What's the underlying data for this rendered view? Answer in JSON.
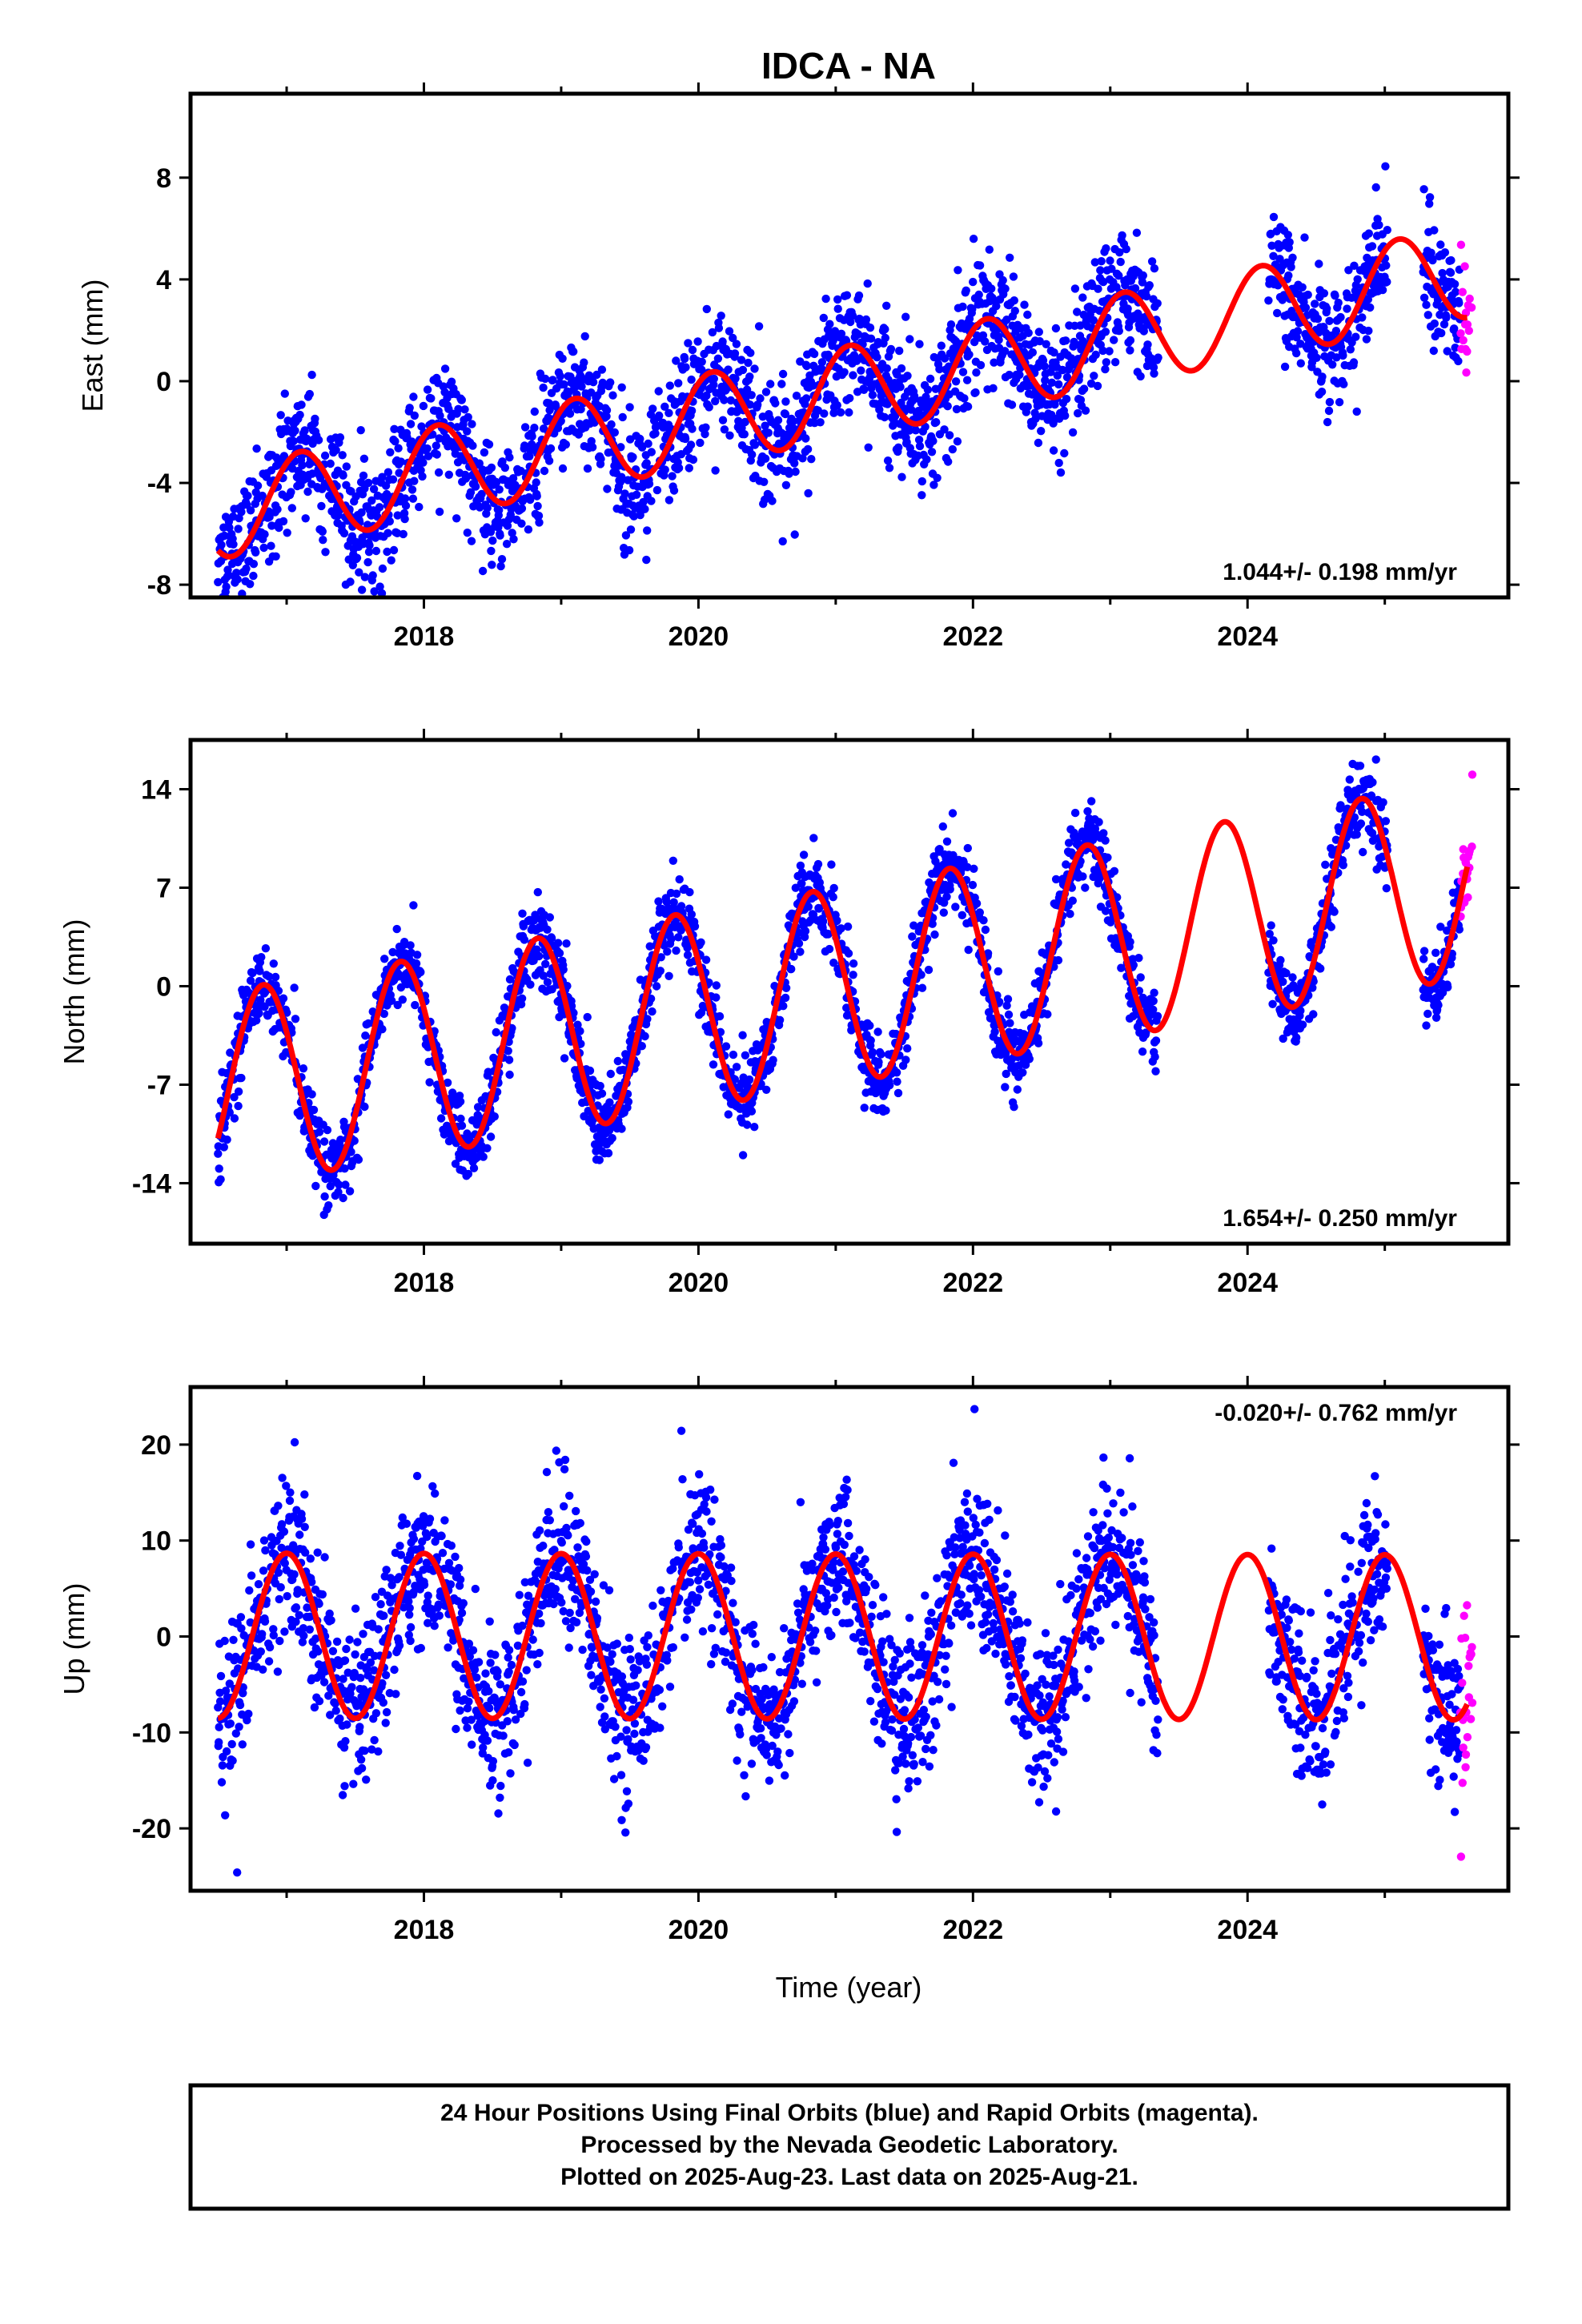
{
  "title": "IDCA - NA",
  "xlabel": "Time (year)",
  "footer": {
    "line1": "24 Hour Positions Using Final Orbits (blue) and Rapid Orbits (magenta).",
    "line2": "Processed by the Nevada Geodetic Laboratory.",
    "line3": "Plotted on 2025-Aug-23. Last data on 2025-Aug-21."
  },
  "colors": {
    "final": "#0000ff",
    "rapid": "#ff00ff",
    "model": "#ff0000",
    "axis": "#000000"
  },
  "chart_data": [
    {
      "type": "scatter",
      "name": "east",
      "ylabel": "East (mm)",
      "rate_text": "1.044+/- 0.198 mm/yr",
      "xlim": [
        2016.3,
        2025.9
      ],
      "ylim": [
        -8.5,
        11.3
      ],
      "yticks": [
        -8,
        -4,
        0,
        4,
        8
      ],
      "xticks": [
        2018,
        2020,
        2022,
        2024
      ],
      "model": {
        "offset": -0.5,
        "trend": 1.044,
        "amp": 1.8,
        "phase_year": 2016.85,
        "ref_year": 2021.0
      },
      "final_ranges": [
        [
          2016.5,
          2017.95
        ],
        [
          2017.95,
          2023.35
        ],
        [
          2024.15,
          2025.02
        ],
        [
          2025.28,
          2025.55
        ]
      ],
      "rapid_range": [
        2025.55,
        2025.64
      ],
      "noise": 1.2
    },
    {
      "type": "scatter",
      "name": "north",
      "ylabel": "North (mm)",
      "rate_text": "1.654+/- 0.250 mm/yr",
      "xlim": [
        2016.3,
        2025.9
      ],
      "ylim": [
        -18.3,
        17.5
      ],
      "yticks": [
        -14,
        -7,
        0,
        7,
        14
      ],
      "xticks": [
        2018,
        2020,
        2022,
        2024
      ],
      "model": {
        "offset": 0.0,
        "trend": 1.654,
        "amp": 7.0,
        "phase_year": 2016.58,
        "ref_year": 2021.0
      },
      "final_ranges": [
        [
          2016.5,
          2023.35
        ],
        [
          2024.15,
          2025.02
        ],
        [
          2025.28,
          2025.55
        ]
      ],
      "rapid_range": [
        2025.55,
        2025.64
      ],
      "noise": 1.4
    },
    {
      "type": "scatter",
      "name": "up",
      "ylabel": "Up (mm)",
      "rate_text": "-0.020+/- 0.762 mm/yr",
      "xlim": [
        2016.3,
        2025.9
      ],
      "ylim": [
        -26.5,
        26
      ],
      "yticks": [
        -20,
        -10,
        0,
        10,
        20
      ],
      "xticks": [
        2018,
        2020,
        2022,
        2024
      ],
      "model": {
        "offset": 0.0,
        "trend": -0.02,
        "amp": 8.6,
        "phase_year": 2016.75,
        "ref_year": 2021.0
      },
      "final_ranges": [
        [
          2016.5,
          2023.35
        ],
        [
          2024.15,
          2025.02
        ],
        [
          2025.28,
          2025.55
        ]
      ],
      "rapid_range": [
        2025.55,
        2025.64
      ],
      "noise": 4.0
    }
  ]
}
